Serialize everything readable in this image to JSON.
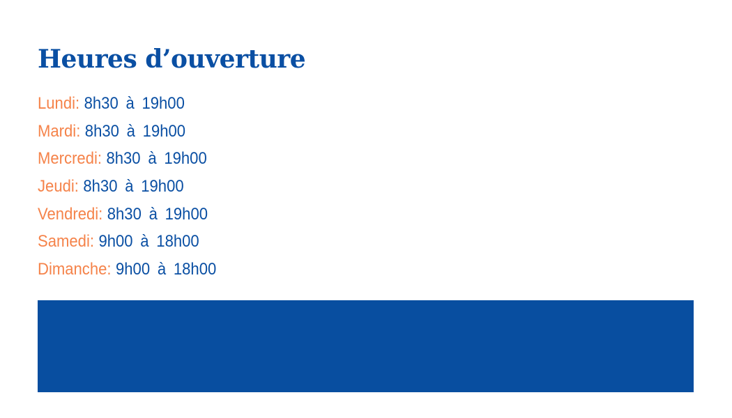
{
  "title": "Heures d’ouverture",
  "hours": [
    {
      "day": "Lundi:",
      "time": "8h30 à 19h00"
    },
    {
      "day": "Mardi:",
      "time": "8h30 à 19h00"
    },
    {
      "day": "Mercredi:",
      "time": "8h30 à 19h00"
    },
    {
      "day": "Jeudi:",
      "time": "8h30 à 19h00"
    },
    {
      "day": "Vendredi:",
      "time": "8h30 à 19h00"
    },
    {
      "day": "Samedi:",
      "time": "9h00 à 18h00"
    },
    {
      "day": "Dimanche:",
      "time": "9h00 à 18h00"
    }
  ],
  "colors": {
    "primary": "#0a4fa3",
    "accent": "#f5834a",
    "banner": "#084ea0"
  }
}
